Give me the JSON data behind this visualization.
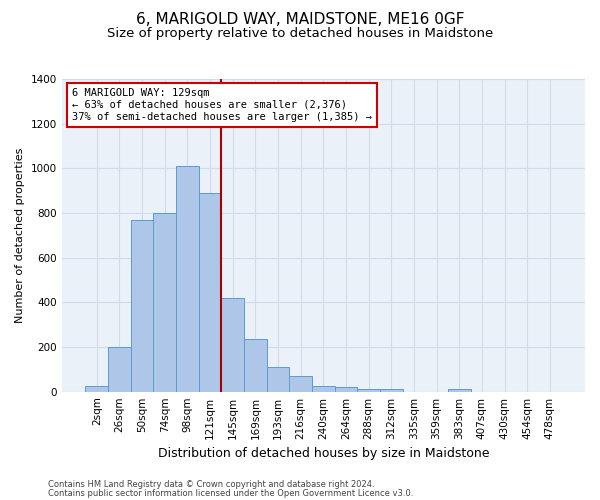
{
  "title": "6, MARIGOLD WAY, MAIDSTONE, ME16 0GF",
  "subtitle": "Size of property relative to detached houses in Maidstone",
  "xlabel": "Distribution of detached houses by size in Maidstone",
  "ylabel": "Number of detached properties",
  "categories": [
    "2sqm",
    "26sqm",
    "50sqm",
    "74sqm",
    "98sqm",
    "121sqm",
    "145sqm",
    "169sqm",
    "193sqm",
    "216sqm",
    "240sqm",
    "264sqm",
    "288sqm",
    "312sqm",
    "335sqm",
    "359sqm",
    "383sqm",
    "407sqm",
    "430sqm",
    "454sqm",
    "478sqm"
  ],
  "bar_heights": [
    25,
    200,
    770,
    800,
    1010,
    890,
    420,
    235,
    110,
    70,
    25,
    20,
    10,
    10,
    0,
    0,
    10,
    0,
    0,
    0,
    0
  ],
  "bar_color": "#aec6e8",
  "bar_edge_color": "#5b9bd5",
  "ylim": [
    0,
    1400
  ],
  "yticks": [
    0,
    200,
    400,
    600,
    800,
    1000,
    1200,
    1400
  ],
  "vline_color": "#aa0000",
  "annotation_title": "6 MARIGOLD WAY: 129sqm",
  "annotation_line1": "← 63% of detached houses are smaller (2,376)",
  "annotation_line2": "37% of semi-detached houses are larger (1,385) →",
  "annotation_box_color": "#cc0000",
  "footnote1": "Contains HM Land Registry data © Crown copyright and database right 2024.",
  "footnote2": "Contains public sector information licensed under the Open Government Licence v3.0.",
  "background_color": "#eaf1f8",
  "grid_color": "#d0dce8",
  "title_fontsize": 11,
  "subtitle_fontsize": 9.5,
  "xlabel_fontsize": 9,
  "ylabel_fontsize": 8,
  "tick_fontsize": 7.5
}
